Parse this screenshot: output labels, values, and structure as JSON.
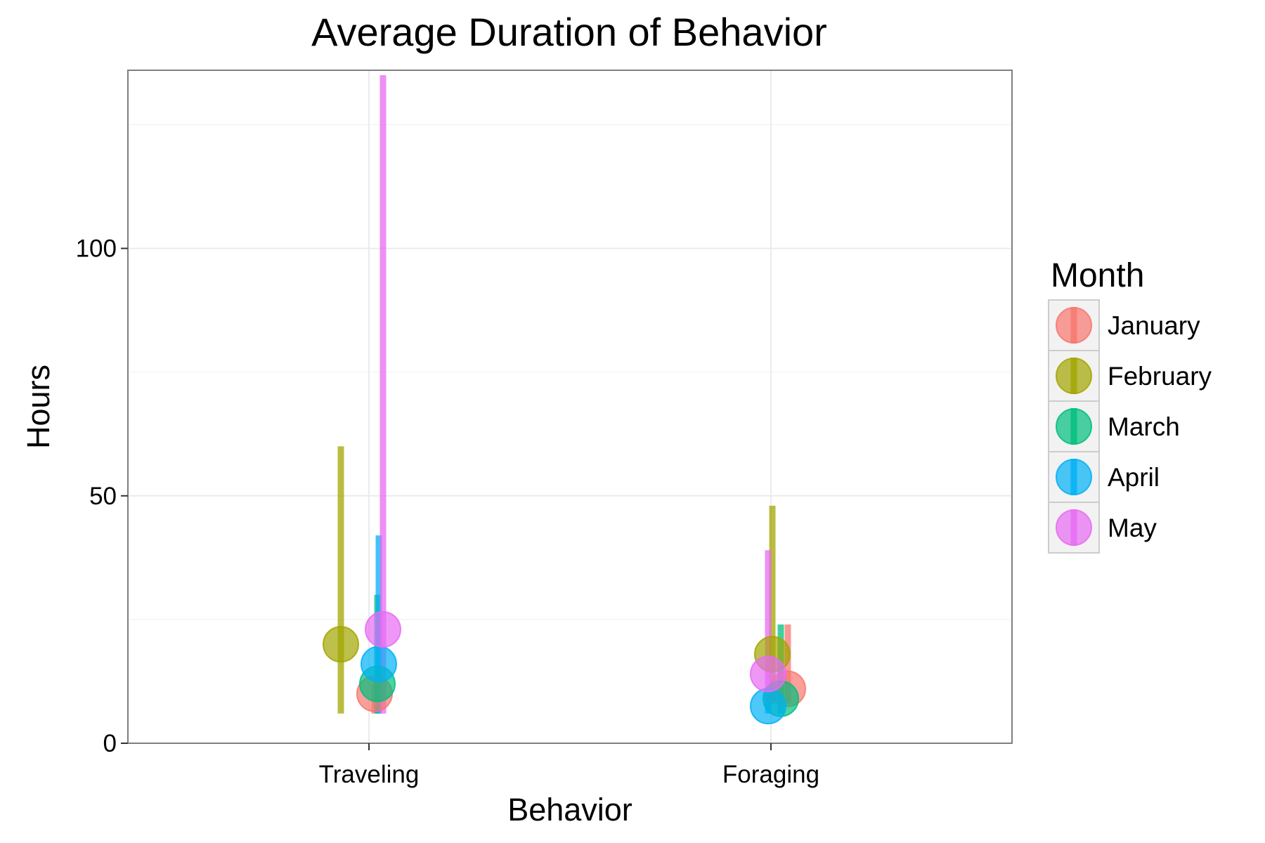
{
  "chart_data": {
    "type": "scatter",
    "title": "Average Duration of Behavior",
    "xlabel": "Behavior",
    "ylabel": "Hours",
    "categories": [
      "Traveling",
      "Foraging"
    ],
    "ylim": [
      0,
      136
    ],
    "yticks": [
      0,
      50,
      100
    ],
    "grid": true,
    "legend": {
      "title": "Month",
      "position": "right"
    },
    "series": [
      {
        "name": "January",
        "color": "#F8766D",
        "points": [
          {
            "category": "Traveling",
            "y": 10,
            "low": 6,
            "high": 12
          },
          {
            "category": "Foraging",
            "y": 11,
            "low": 8,
            "high": 24
          }
        ]
      },
      {
        "name": "February",
        "color": "#A3A500",
        "points": [
          {
            "category": "Traveling",
            "y": 20,
            "low": 6,
            "high": 60
          },
          {
            "category": "Foraging",
            "y": 18,
            "low": 8,
            "high": 48
          }
        ]
      },
      {
        "name": "March",
        "color": "#00BF7D",
        "points": [
          {
            "category": "Traveling",
            "y": 12,
            "low": 6,
            "high": 30
          },
          {
            "category": "Foraging",
            "y": 9,
            "low": 6,
            "high": 24
          }
        ]
      },
      {
        "name": "April",
        "color": "#00B0F6",
        "points": [
          {
            "category": "Traveling",
            "y": 16,
            "low": 6,
            "high": 42
          },
          {
            "category": "Foraging",
            "y": 7.5,
            "low": 6,
            "high": 10
          }
        ]
      },
      {
        "name": "May",
        "color": "#E76BF3",
        "points": [
          {
            "category": "Traveling",
            "y": 23,
            "low": 6,
            "high": 135
          },
          {
            "category": "Foraging",
            "y": 14,
            "low": 8,
            "high": 39
          }
        ]
      }
    ]
  }
}
